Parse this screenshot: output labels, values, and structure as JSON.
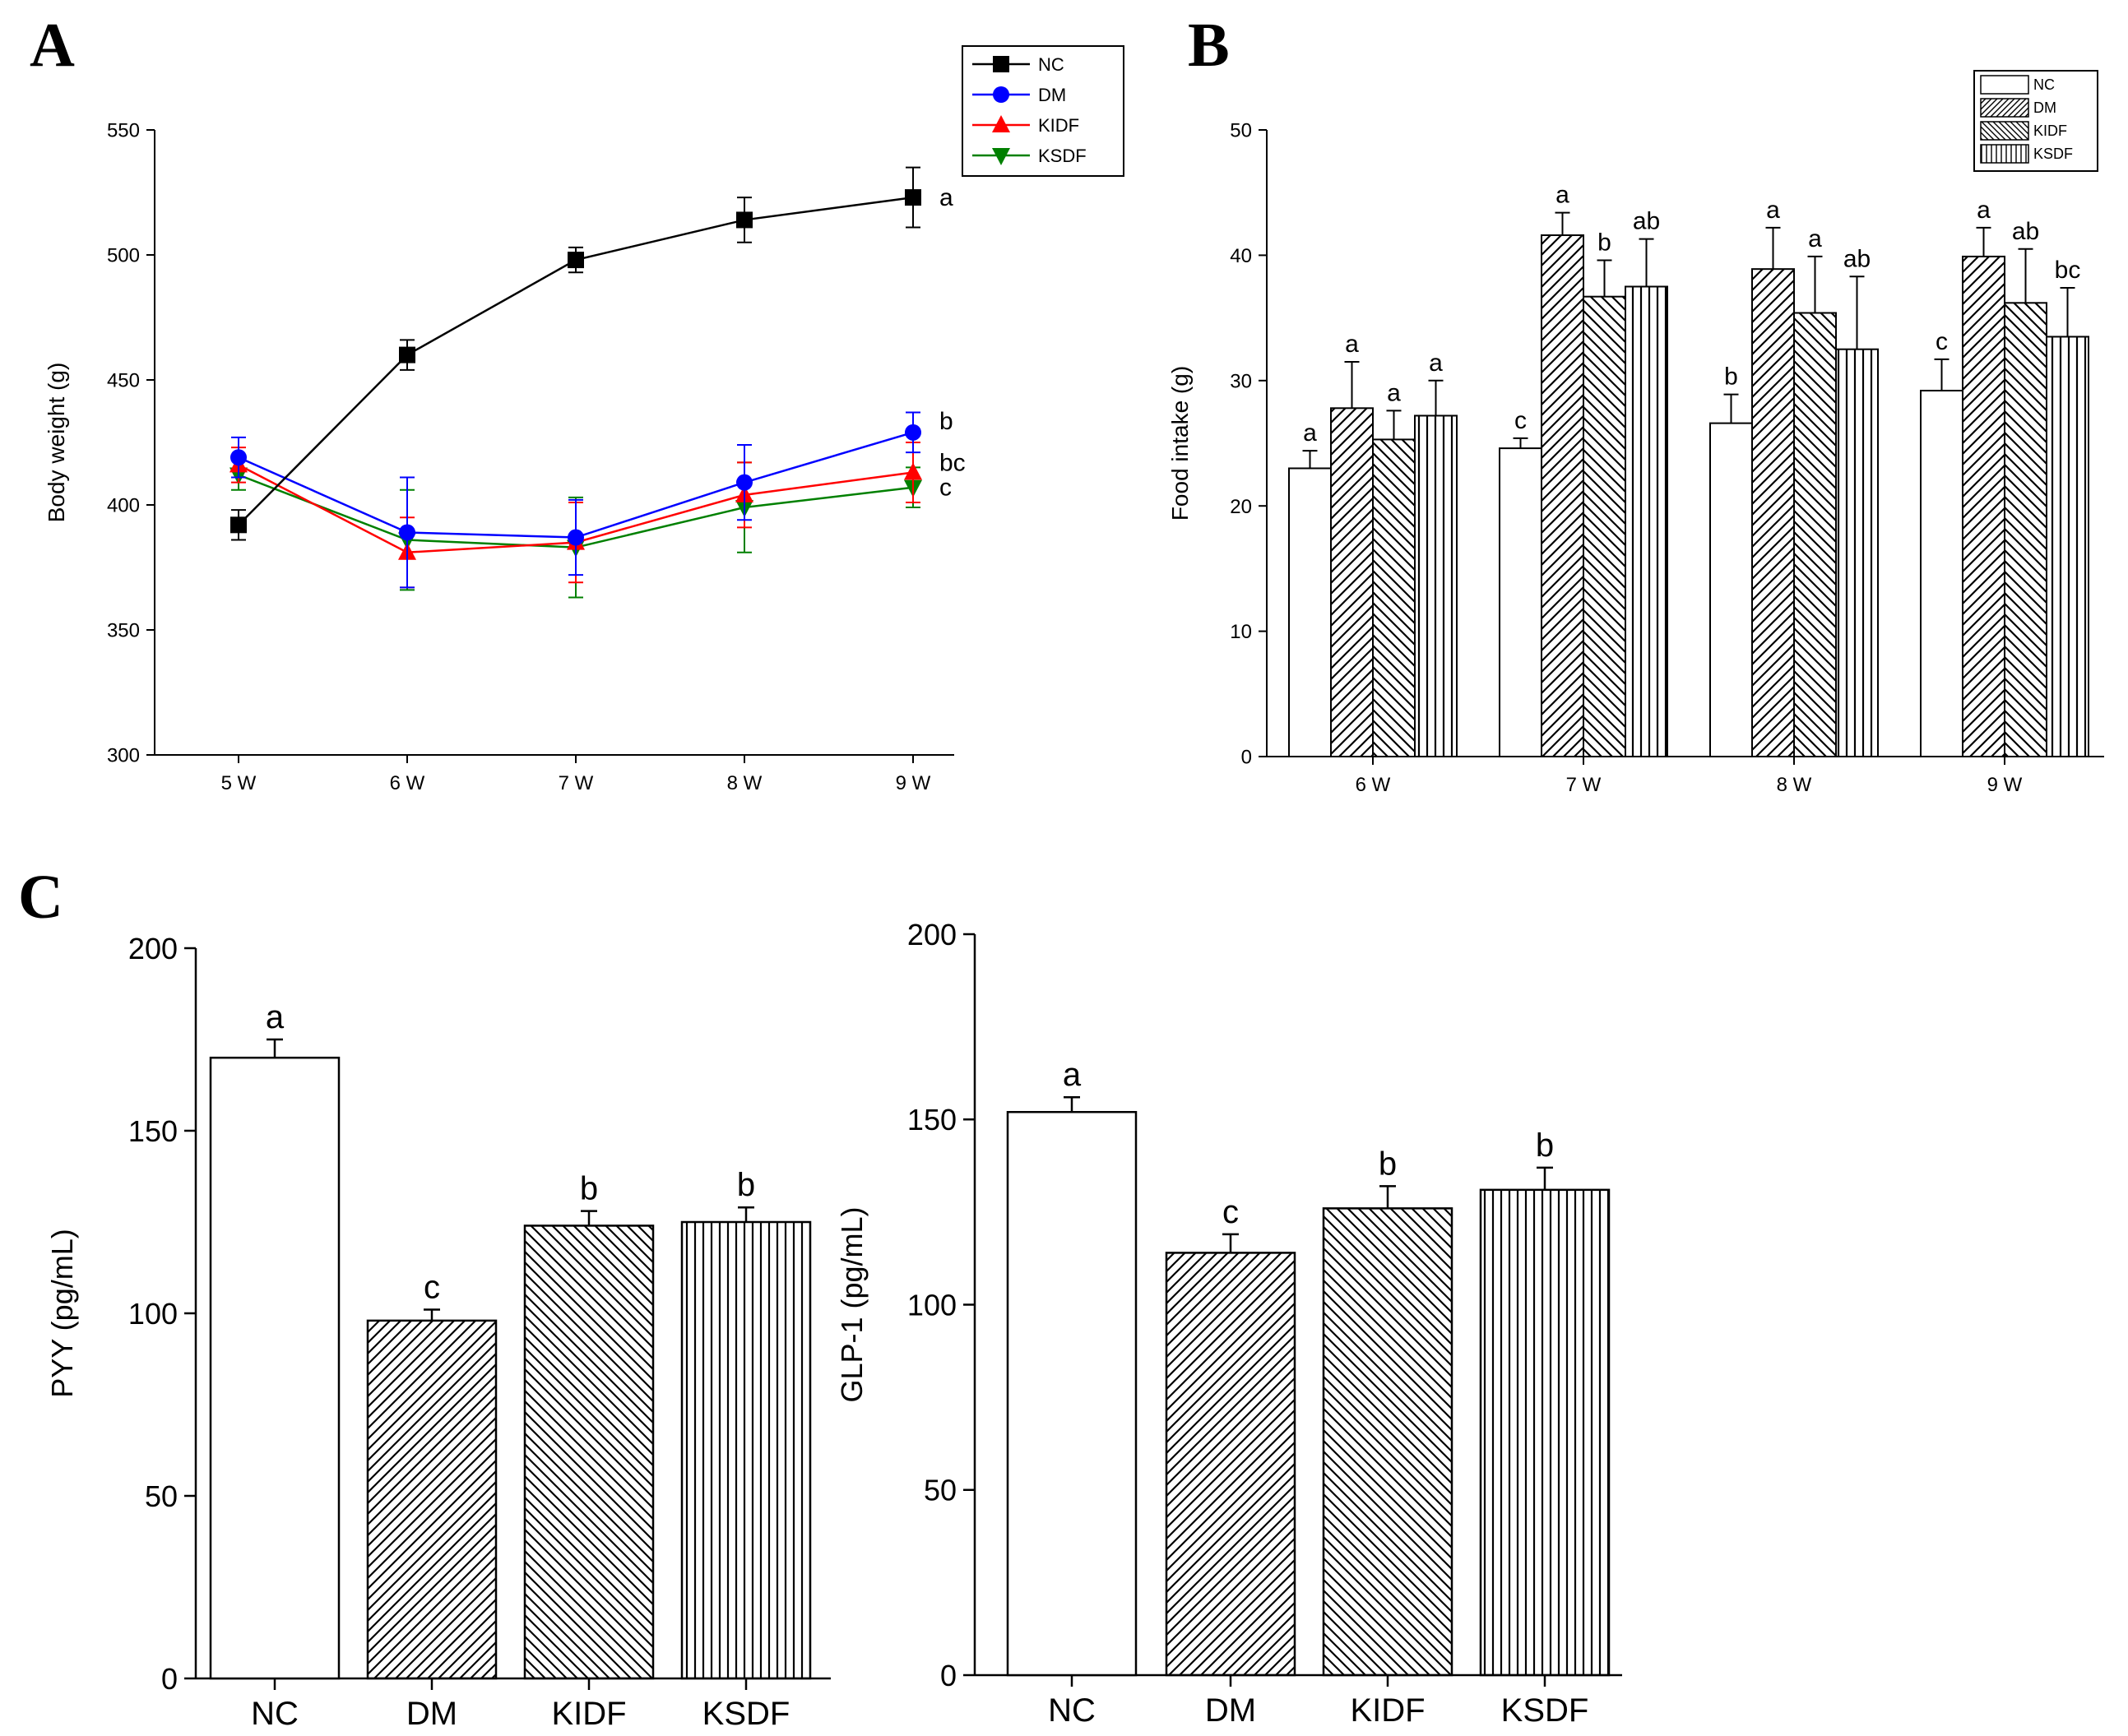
{
  "figure": {
    "panel_labels": [
      "A",
      "B",
      "C"
    ]
  },
  "chart_data": [
    {
      "id": "A",
      "type": "line",
      "ylabel": "Body weight (g)",
      "xlabel": "",
      "categories": [
        "5 W",
        "6 W",
        "7 W",
        "8 W",
        "9 W"
      ],
      "ylim": [
        300,
        550
      ],
      "yticks": [
        300,
        350,
        400,
        450,
        500,
        550
      ],
      "legend_position": "top-right",
      "series": [
        {
          "name": "NC",
          "color": "#000000",
          "marker": "square",
          "values": [
            392,
            460,
            498,
            514,
            523
          ],
          "errors": [
            6,
            6,
            5,
            9,
            12
          ]
        },
        {
          "name": "DM",
          "color": "#0000ff",
          "marker": "circle",
          "values": [
            419,
            389,
            387,
            409,
            429
          ],
          "errors": [
            8,
            22,
            15,
            15,
            8
          ]
        },
        {
          "name": "KIDF",
          "color": "#ff0000",
          "marker": "triangle-up",
          "values": [
            416,
            381,
            385,
            404,
            413
          ],
          "errors": [
            7,
            14,
            16,
            13,
            12
          ]
        },
        {
          "name": "KSDF",
          "color": "#008000",
          "marker": "triangle-down",
          "values": [
            412,
            386,
            383,
            399,
            407
          ],
          "errors": [
            6,
            20,
            20,
            18,
            8
          ]
        }
      ],
      "annotations": [
        "a",
        "b",
        "bc",
        "c"
      ]
    },
    {
      "id": "B",
      "type": "bar",
      "ylabel": "Food intake (g)",
      "xlabel": "",
      "categories": [
        "6 W",
        "7 W",
        "8 W",
        "9 W"
      ],
      "ylim": [
        0,
        50
      ],
      "yticks": [
        0,
        10,
        20,
        30,
        40,
        50
      ],
      "legend_position": "top-right",
      "series": [
        {
          "name": "NC",
          "pattern": "none",
          "values": [
            23.0,
            24.6,
            26.6,
            29.2
          ],
          "errors": [
            1.4,
            0.8,
            2.3,
            2.5
          ],
          "letters": [
            "a",
            "c",
            "b",
            "c"
          ]
        },
        {
          "name": "DM",
          "pattern": "diag-up",
          "values": [
            27.8,
            41.6,
            38.9,
            39.9
          ],
          "errors": [
            3.7,
            1.8,
            3.3,
            2.3
          ],
          "letters": [
            "a",
            "a",
            "a",
            "a"
          ]
        },
        {
          "name": "KIDF",
          "pattern": "diag-down",
          "values": [
            25.3,
            36.7,
            35.4,
            36.2
          ],
          "errors": [
            2.3,
            2.9,
            4.5,
            4.3
          ],
          "letters": [
            "a",
            "b",
            "a",
            "ab"
          ]
        },
        {
          "name": "KSDF",
          "pattern": "vertical",
          "values": [
            27.2,
            37.5,
            32.5,
            33.5
          ],
          "errors": [
            2.8,
            3.8,
            5.8,
            3.9
          ],
          "letters": [
            "a",
            "ab",
            "ab",
            "bc"
          ]
        }
      ]
    },
    {
      "id": "C-left",
      "type": "bar",
      "ylabel": "PYY (pg/mL)",
      "xlabel": "",
      "categories": [
        "NC",
        "DM",
        "KIDF",
        "KSDF"
      ],
      "patterns": [
        "none",
        "diag-up",
        "diag-down",
        "vertical"
      ],
      "values": [
        170,
        98,
        124,
        125
      ],
      "errors": [
        5,
        3,
        4,
        4
      ],
      "letters": [
        "a",
        "c",
        "b",
        "b"
      ],
      "ylim": [
        0,
        200
      ],
      "yticks": [
        0,
        50,
        100,
        150,
        200
      ]
    },
    {
      "id": "C-right",
      "type": "bar",
      "ylabel": "GLP-1 (pg/mL)",
      "xlabel": "",
      "categories": [
        "NC",
        "DM",
        "KIDF",
        "KSDF"
      ],
      "patterns": [
        "none",
        "diag-up",
        "diag-down",
        "vertical"
      ],
      "values": [
        152,
        114,
        126,
        131
      ],
      "errors": [
        4,
        5,
        6,
        6
      ],
      "letters": [
        "a",
        "c",
        "b",
        "b"
      ],
      "ylim": [
        0,
        200
      ],
      "yticks": [
        0,
        50,
        100,
        150,
        200
      ]
    }
  ]
}
